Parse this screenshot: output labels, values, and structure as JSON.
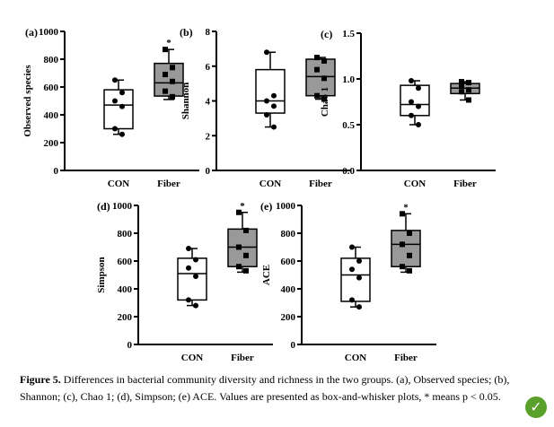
{
  "chart_data": [
    {
      "type": "box",
      "panel_label": "(a)",
      "ylabel": "Observed species",
      "categories": [
        "CON",
        "Fiber"
      ],
      "ylim": [
        0,
        1000
      ],
      "yticks": [
        0,
        200,
        400,
        600,
        800,
        1000
      ],
      "tick_labels": [
        "0",
        "200",
        "400",
        "600",
        "800",
        "1000"
      ],
      "boxes": [
        {
          "category": "CON",
          "min": 260,
          "q1": 300,
          "median": 470,
          "q3": 580,
          "max": 650,
          "fill": "#ffffff",
          "points": [
            650,
            560,
            500,
            460,
            300,
            260
          ],
          "marker": "circle"
        },
        {
          "category": "Fiber",
          "min": 510,
          "q1": 535,
          "median": 630,
          "q3": 770,
          "max": 870,
          "fill": "#999999",
          "points": [
            870,
            740,
            690,
            640,
            570,
            530
          ],
          "marker": "square"
        }
      ],
      "significance": [
        {
          "category": "Fiber",
          "label": "*"
        }
      ]
    },
    {
      "type": "box",
      "panel_label": "(b)",
      "ylabel": "Shannon",
      "categories": [
        "CON",
        "Fiber"
      ],
      "ylim": [
        0,
        8
      ],
      "yticks": [
        0,
        2,
        4,
        6,
        8
      ],
      "tick_labels": [
        "0",
        "2",
        "4",
        "6",
        "8"
      ],
      "boxes": [
        {
          "category": "CON",
          "min": 2.5,
          "q1": 3.3,
          "median": 4.0,
          "q3": 5.8,
          "max": 6.8,
          "fill": "#ffffff",
          "points": [
            6.8,
            4.3,
            4.0,
            3.7,
            3.2,
            2.5
          ],
          "marker": "circle"
        },
        {
          "category": "Fiber",
          "min": 4.1,
          "q1": 4.3,
          "median": 5.4,
          "q3": 6.4,
          "max": 6.5,
          "fill": "#999999",
          "points": [
            6.5,
            6.3,
            5.8,
            5.3,
            4.3,
            4.1
          ],
          "marker": "square"
        }
      ],
      "significance": []
    },
    {
      "type": "box",
      "panel_label": "(c)",
      "ylabel": "Chao 1",
      "categories": [
        "CON",
        "Fiber"
      ],
      "ylim": [
        0,
        1.5
      ],
      "yticks": [
        0,
        0.5,
        1.0,
        1.5
      ],
      "tick_labels": [
        "0.0",
        "0.5",
        "1.0",
        "1.5"
      ],
      "boxes": [
        {
          "category": "CON",
          "min": 0.5,
          "q1": 0.6,
          "median": 0.72,
          "q3": 0.93,
          "max": 0.98,
          "fill": "#ffffff",
          "points": [
            0.98,
            0.9,
            0.75,
            0.7,
            0.6,
            0.5
          ],
          "marker": "circle"
        },
        {
          "category": "Fiber",
          "min": 0.77,
          "q1": 0.84,
          "median": 0.9,
          "q3": 0.95,
          "max": 0.97,
          "fill": "#999999",
          "points": [
            0.97,
            0.96,
            0.92,
            0.88,
            0.86,
            0.77
          ],
          "marker": "square"
        }
      ],
      "significance": []
    },
    {
      "type": "box",
      "panel_label": "(d)",
      "ylabel": "Simpson",
      "categories": [
        "CON",
        "Fiber"
      ],
      "ylim": [
        0,
        1000
      ],
      "yticks": [
        0,
        200,
        400,
        600,
        800,
        1000
      ],
      "tick_labels": [
        "0",
        "200",
        "400",
        "600",
        "800",
        "1000"
      ],
      "boxes": [
        {
          "category": "CON",
          "min": 280,
          "q1": 320,
          "median": 510,
          "q3": 620,
          "max": 690,
          "fill": "#ffffff",
          "points": [
            690,
            610,
            550,
            490,
            320,
            280
          ],
          "marker": "circle"
        },
        {
          "category": "Fiber",
          "min": 520,
          "q1": 560,
          "median": 700,
          "q3": 830,
          "max": 950,
          "fill": "#999999",
          "points": [
            950,
            820,
            700,
            640,
            560,
            530
          ],
          "marker": "square"
        }
      ],
      "significance": [
        {
          "category": "Fiber",
          "label": "*"
        }
      ]
    },
    {
      "type": "box",
      "panel_label": "(e)",
      "ylabel": "ACE",
      "categories": [
        "CON",
        "Fiber"
      ],
      "ylim": [
        0,
        1000
      ],
      "yticks": [
        0,
        200,
        400,
        600,
        800,
        1000
      ],
      "tick_labels": [
        "0",
        "200",
        "400",
        "600",
        "800",
        "1000"
      ],
      "boxes": [
        {
          "category": "CON",
          "min": 270,
          "q1": 310,
          "median": 500,
          "q3": 620,
          "max": 700,
          "fill": "#ffffff",
          "points": [
            700,
            600,
            540,
            480,
            320,
            270
          ],
          "marker": "circle"
        },
        {
          "category": "Fiber",
          "min": 520,
          "q1": 560,
          "median": 720,
          "q3": 820,
          "max": 940,
          "fill": "#999999",
          "points": [
            940,
            800,
            720,
            640,
            560,
            530
          ],
          "marker": "square"
        }
      ],
      "significance": [
        {
          "category": "Fiber",
          "label": "*"
        }
      ]
    }
  ],
  "caption": {
    "label": "Figure 5.",
    "text": "Differences in bacterial community diversity and richness in the two groups. (a), Observed species; (b), Shannon; (c), Chao 1; (d), Simpson; (e) ACE. Values are presented as box-and-whisker plots, * means p < 0.05."
  },
  "badge_icon": "check-circle-icon",
  "colors": {
    "fiber_box": "#999999",
    "con_box": "#ffffff",
    "badge": "#5aa12b"
  }
}
